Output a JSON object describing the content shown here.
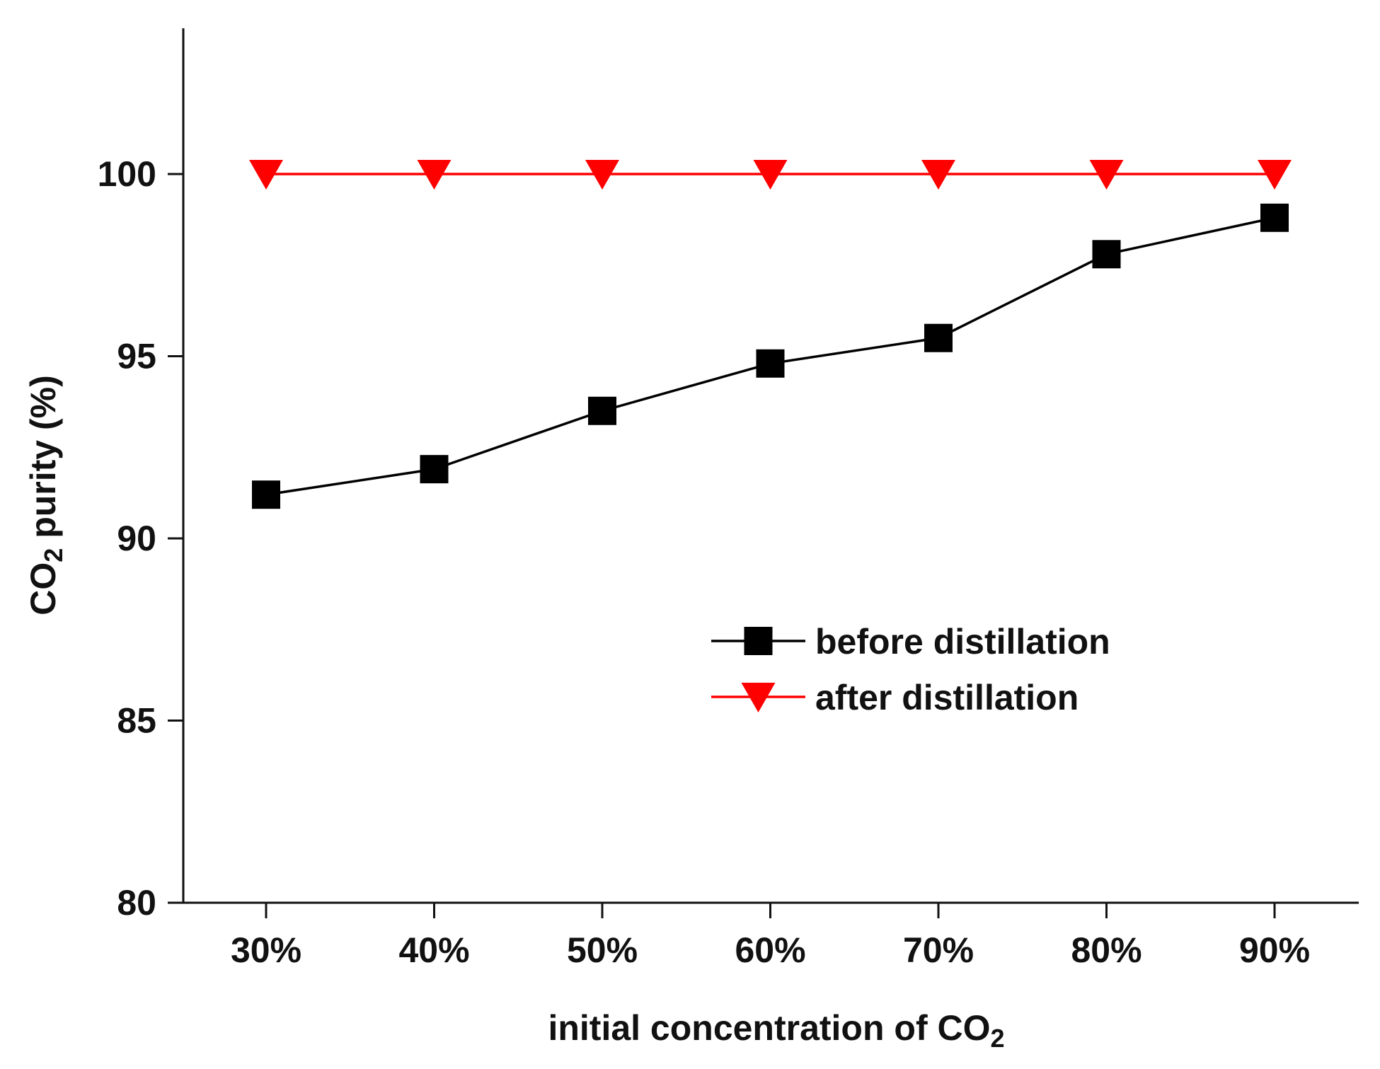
{
  "chart_data": {
    "type": "line",
    "x_categories": [
      "30%",
      "40%",
      "50%",
      "60%",
      "70%",
      "80%",
      "90%"
    ],
    "xlabel": {
      "main": "initial concentration of CO",
      "sub": "2"
    },
    "ylabel": {
      "pre": "CO",
      "sub": "2",
      "post": " purity (%)"
    },
    "ylim": [
      80,
      104
    ],
    "yticks": [
      80,
      85,
      90,
      95,
      100
    ],
    "grid": false,
    "legend_position": "right-center",
    "series": [
      {
        "name": "before distillation",
        "marker": "square",
        "color": "#000000",
        "values": [
          91.2,
          91.9,
          93.5,
          94.8,
          95.5,
          97.8,
          98.8
        ]
      },
      {
        "name": "after distillation",
        "marker": "triangle-down",
        "color": "#ff0000",
        "values": [
          100,
          100,
          100,
          100,
          100,
          100,
          100
        ]
      }
    ]
  }
}
